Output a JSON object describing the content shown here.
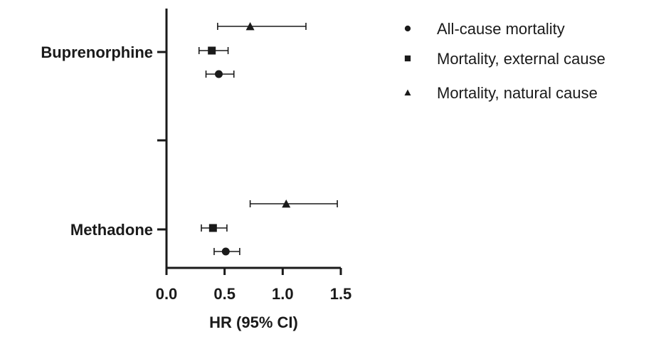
{
  "chart_data": {
    "type": "forest",
    "title": "",
    "xlabel": "HR (95% CI)",
    "ylabel": "",
    "xlim": [
      0.0,
      1.5
    ],
    "xticks": [
      "0.0",
      "0.5",
      "1.0",
      "1.5"
    ],
    "xtick_values": [
      0.0,
      0.5,
      1.0,
      1.5
    ],
    "categories": [
      "Buprenorphine",
      "Methadone"
    ],
    "grid": false,
    "legend_position": "top-right",
    "series": [
      {
        "name": "All-cause mortality",
        "marker": "circle",
        "values": [
          {
            "category": "Buprenorphine",
            "hr": 0.45,
            "ci_low": 0.34,
            "ci_high": 0.58
          },
          {
            "category": "Methadone",
            "hr": 0.51,
            "ci_low": 0.41,
            "ci_high": 0.63
          }
        ]
      },
      {
        "name": "Mortality, external cause",
        "marker": "square",
        "values": [
          {
            "category": "Buprenorphine",
            "hr": 0.39,
            "ci_low": 0.28,
            "ci_high": 0.53
          },
          {
            "category": "Methadone",
            "hr": 0.4,
            "ci_low": 0.3,
            "ci_high": 0.52
          }
        ]
      },
      {
        "name": "Mortality, natural cause",
        "marker": "triangle",
        "values": [
          {
            "category": "Buprenorphine",
            "hr": 0.72,
            "ci_low": 0.44,
            "ci_high": 1.2
          },
          {
            "category": "Methadone",
            "hr": 1.03,
            "ci_low": 0.72,
            "ci_high": 1.47
          }
        ]
      }
    ],
    "colors": {
      "axis": "#1a1a1a",
      "marker": "#1a1a1a",
      "text": "#1a1a1a"
    }
  }
}
